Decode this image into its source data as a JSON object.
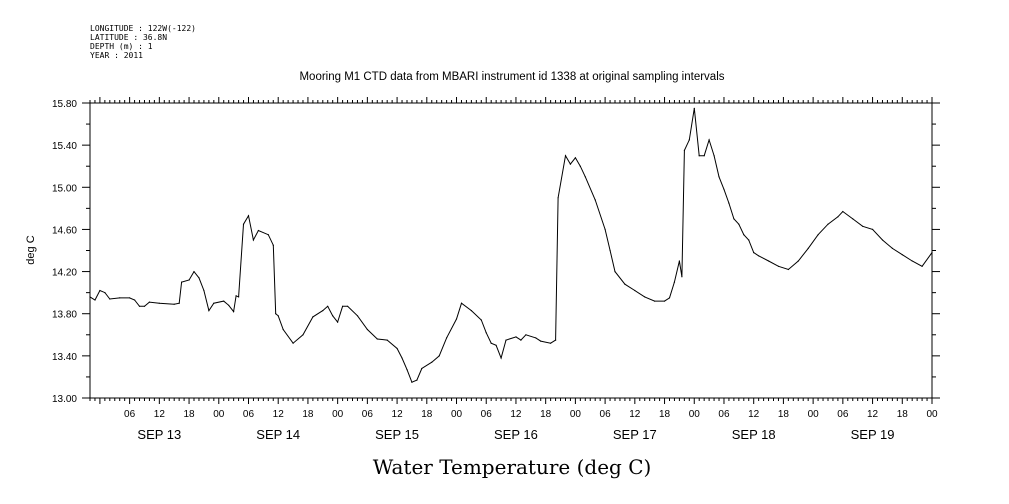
{
  "header": {
    "meta_lines": [
      "LONGITUDE : 122W(-122)",
      "LATITUDE : 36.8N",
      "DEPTH (m) : 1",
      "YEAR : 2011"
    ],
    "title": "Mooring M1 CTD data from MBARI instrument id 1338 at original sampling intervals"
  },
  "chart_data": {
    "type": "line",
    "title": "Mooring M1 CTD data from MBARI instrument id 1338 at original sampling intervals",
    "xlabel": "Water Temperature (deg C)",
    "ylabel": "deg C",
    "ylim": [
      13.0,
      15.8
    ],
    "yticks": [
      "13.00",
      "13.40",
      "13.80",
      "14.20",
      "14.60",
      "15.00",
      "15.40",
      "15.80"
    ],
    "xlim": [
      "SEP 12 22:00",
      "SEP 20 00:00"
    ],
    "x_hour_ticks": [
      "06",
      "12",
      "18",
      "00",
      "06",
      "12",
      "18",
      "00",
      "06",
      "12",
      "18",
      "00",
      "06",
      "12",
      "18",
      "00",
      "06",
      "12",
      "18",
      "00",
      "06",
      "12",
      "18",
      "00",
      "06",
      "12",
      "18",
      "00"
    ],
    "day_labels": [
      "SEP 13",
      "SEP 14",
      "SEP 15",
      "SEP 16",
      "SEP 17",
      "SEP 18",
      "SEP 19"
    ],
    "grid": false,
    "series": [
      {
        "color": "#000000",
        "points": [
          [
            "SEP 12 22:00",
            13.96
          ],
          [
            "SEP 12 23:00",
            13.93
          ],
          [
            "SEP 13 00:00",
            14.02
          ],
          [
            "SEP 13 01:00",
            14.0
          ],
          [
            "SEP 13 02:00",
            13.94
          ],
          [
            "SEP 13 04:00",
            13.95
          ],
          [
            "SEP 13 06:00",
            13.95
          ],
          [
            "SEP 13 07:00",
            13.93
          ],
          [
            "SEP 13 08:00",
            13.87
          ],
          [
            "SEP 13 09:00",
            13.87
          ],
          [
            "SEP 13 10:00",
            13.91
          ],
          [
            "SEP 13 12:00",
            13.9
          ],
          [
            "SEP 13 15:00",
            13.89
          ],
          [
            "SEP 13 16:00",
            13.9
          ],
          [
            "SEP 13 16:30",
            14.1
          ],
          [
            "SEP 13 18:00",
            14.12
          ],
          [
            "SEP 13 19:00",
            14.2
          ],
          [
            "SEP 13 20:00",
            14.14
          ],
          [
            "SEP 13 21:00",
            14.02
          ],
          [
            "SEP 13 22:00",
            13.83
          ],
          [
            "SEP 13 23:00",
            13.9
          ],
          [
            "SEP 14 01:00",
            13.92
          ],
          [
            "SEP 14 02:00",
            13.88
          ],
          [
            "SEP 14 03:00",
            13.82
          ],
          [
            "SEP 14 03:30",
            13.97
          ],
          [
            "SEP 14 04:00",
            13.96
          ],
          [
            "SEP 14 05:00",
            14.65
          ],
          [
            "SEP 14 06:00",
            14.73
          ],
          [
            "SEP 14 07:00",
            14.5
          ],
          [
            "SEP 14 08:00",
            14.59
          ],
          [
            "SEP 14 10:00",
            14.55
          ],
          [
            "SEP 14 11:00",
            14.45
          ],
          [
            "SEP 14 11:30",
            13.8
          ],
          [
            "SEP 14 12:00",
            13.78
          ],
          [
            "SEP 14 13:00",
            13.65
          ],
          [
            "SEP 14 15:00",
            13.52
          ],
          [
            "SEP 14 17:00",
            13.6
          ],
          [
            "SEP 14 19:00",
            13.77
          ],
          [
            "SEP 14 21:00",
            13.83
          ],
          [
            "SEP 14 22:00",
            13.87
          ],
          [
            "SEP 14 23:00",
            13.78
          ],
          [
            "SEP 15 00:00",
            13.72
          ],
          [
            "SEP 15 01:00",
            13.87
          ],
          [
            "SEP 15 02:00",
            13.87
          ],
          [
            "SEP 15 04:00",
            13.78
          ],
          [
            "SEP 15 06:00",
            13.65
          ],
          [
            "SEP 15 08:00",
            13.56
          ],
          [
            "SEP 15 10:00",
            13.55
          ],
          [
            "SEP 15 12:00",
            13.47
          ],
          [
            "SEP 15 13:00",
            13.38
          ],
          [
            "SEP 15 14:00",
            13.27
          ],
          [
            "SEP 15 15:00",
            13.15
          ],
          [
            "SEP 15 16:00",
            13.17
          ],
          [
            "SEP 15 17:00",
            13.28
          ],
          [
            "SEP 15 19:00",
            13.34
          ],
          [
            "SEP 15 20:30",
            13.4
          ],
          [
            "SEP 15 22:00",
            13.57
          ],
          [
            "SEP 16 00:00",
            13.75
          ],
          [
            "SEP 16 01:00",
            13.9
          ],
          [
            "SEP 16 03:00",
            13.83
          ],
          [
            "SEP 16 05:00",
            13.74
          ],
          [
            "SEP 16 06:00",
            13.62
          ],
          [
            "SEP 16 07:00",
            13.52
          ],
          [
            "SEP 16 08:00",
            13.5
          ],
          [
            "SEP 16 09:00",
            13.38
          ],
          [
            "SEP 16 10:00",
            13.55
          ],
          [
            "SEP 16 12:00",
            13.58
          ],
          [
            "SEP 16 13:00",
            13.55
          ],
          [
            "SEP 16 14:00",
            13.6
          ],
          [
            "SEP 16 16:00",
            13.57
          ],
          [
            "SEP 16 17:00",
            13.54
          ],
          [
            "SEP 16 19:00",
            13.52
          ],
          [
            "SEP 16 20:00",
            13.55
          ],
          [
            "SEP 16 20:30",
            14.9
          ],
          [
            "SEP 16 22:00",
            15.3
          ],
          [
            "SEP 16 23:00",
            15.22
          ],
          [
            "SEP 17 00:00",
            15.28
          ],
          [
            "SEP 17 01:00",
            15.2
          ],
          [
            "SEP 17 02:00",
            15.1
          ],
          [
            "SEP 17 04:00",
            14.88
          ],
          [
            "SEP 17 06:00",
            14.6
          ],
          [
            "SEP 17 07:00",
            14.4
          ],
          [
            "SEP 17 08:00",
            14.2
          ],
          [
            "SEP 17 10:00",
            14.08
          ],
          [
            "SEP 17 12:00",
            14.02
          ],
          [
            "SEP 17 14:00",
            13.96
          ],
          [
            "SEP 17 16:00",
            13.92
          ],
          [
            "SEP 17 18:00",
            13.92
          ],
          [
            "SEP 17 19:00",
            13.95
          ],
          [
            "SEP 17 20:00",
            14.1
          ],
          [
            "SEP 17 21:00",
            14.3
          ],
          [
            "SEP 17 21:30",
            14.15
          ],
          [
            "SEP 17 22:00",
            15.35
          ],
          [
            "SEP 17 23:00",
            15.45
          ],
          [
            "SEP 18 00:00",
            15.75
          ],
          [
            "SEP 18 01:00",
            15.3
          ],
          [
            "SEP 18 02:00",
            15.3
          ],
          [
            "SEP 18 03:00",
            15.45
          ],
          [
            "SEP 18 04:00",
            15.3
          ],
          [
            "SEP 18 05:00",
            15.1
          ],
          [
            "SEP 18 06:00",
            14.98
          ],
          [
            "SEP 18 07:00",
            14.85
          ],
          [
            "SEP 18 08:00",
            14.7
          ],
          [
            "SEP 18 09:00",
            14.65
          ],
          [
            "SEP 18 10:00",
            14.55
          ],
          [
            "SEP 18 11:00",
            14.5
          ],
          [
            "SEP 18 12:00",
            14.38
          ],
          [
            "SEP 18 13:00",
            14.35
          ],
          [
            "SEP 18 15:00",
            14.3
          ],
          [
            "SEP 18 17:00",
            14.25
          ],
          [
            "SEP 18 19:00",
            14.22
          ],
          [
            "SEP 18 21:00",
            14.3
          ],
          [
            "SEP 18 23:00",
            14.42
          ],
          [
            "SEP 19 01:00",
            14.55
          ],
          [
            "SEP 19 03:00",
            14.65
          ],
          [
            "SEP 19 05:00",
            14.72
          ],
          [
            "SEP 19 06:00",
            14.77
          ],
          [
            "SEP 19 08:00",
            14.7
          ],
          [
            "SEP 19 10:00",
            14.63
          ],
          [
            "SEP 19 12:00",
            14.6
          ],
          [
            "SEP 19 14:00",
            14.5
          ],
          [
            "SEP 19 16:00",
            14.42
          ],
          [
            "SEP 19 18:00",
            14.36
          ],
          [
            "SEP 19 20:00",
            14.3
          ],
          [
            "SEP 19 22:00",
            14.25
          ],
          [
            "SEP 20 00:00",
            14.38
          ]
        ]
      }
    ]
  }
}
